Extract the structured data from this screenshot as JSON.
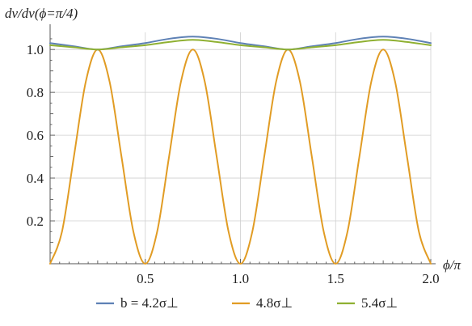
{
  "chart_data": {
    "type": "line",
    "ylabel": "dν/dν(ϕ=π/4)",
    "xlabel": "ϕ/π",
    "xlim": [
      0,
      2
    ],
    "ylim": [
      0,
      1.08
    ],
    "grid": true,
    "legend_position": "bottom",
    "x_ticks": [
      {
        "value": 0.5,
        "label": "0.5"
      },
      {
        "value": 1.0,
        "label": "1.0"
      },
      {
        "value": 1.5,
        "label": "1.5"
      },
      {
        "value": 2.0,
        "label": "2.0"
      }
    ],
    "y_ticks": [
      {
        "value": 0.2,
        "label": "0.2"
      },
      {
        "value": 0.4,
        "label": "0.4"
      },
      {
        "value": 0.6,
        "label": "0.6"
      },
      {
        "value": 0.8,
        "label": "0.8"
      },
      {
        "value": 1.0,
        "label": "1.0"
      }
    ],
    "series": [
      {
        "name": "b = 4.2σ⊥",
        "color": "#5E81B5",
        "x": [
          0,
          0.125,
          0.25,
          0.375,
          0.5,
          0.625,
          0.75,
          0.875,
          1.0,
          1.125,
          1.25,
          1.375,
          1.5,
          1.625,
          1.75,
          1.875,
          2.0
        ],
        "y": [
          1.03,
          1.015,
          1.0,
          1.015,
          1.03,
          1.05,
          1.06,
          1.05,
          1.03,
          1.015,
          1.0,
          1.015,
          1.03,
          1.05,
          1.06,
          1.05,
          1.03
        ]
      },
      {
        "name": "4.8σ⊥",
        "color": "#E19C24",
        "x": [
          0,
          0.0625,
          0.125,
          0.1875,
          0.25,
          0.3125,
          0.375,
          0.4375,
          0.5,
          0.5625,
          0.625,
          0.6875,
          0.75,
          0.8125,
          0.875,
          0.9375,
          1.0,
          1.0625,
          1.125,
          1.1875,
          1.25,
          1.3125,
          1.375,
          1.4375,
          1.5,
          1.5625,
          1.625,
          1.6875,
          1.75,
          1.8125,
          1.875,
          1.9375,
          2.0
        ],
        "y": [
          0,
          0.15,
          0.5,
          0.85,
          1.0,
          0.85,
          0.5,
          0.15,
          0,
          0.15,
          0.5,
          0.85,
          1.0,
          0.85,
          0.5,
          0.15,
          0,
          0.15,
          0.5,
          0.85,
          1.0,
          0.85,
          0.5,
          0.15,
          0,
          0.15,
          0.5,
          0.85,
          1.0,
          0.85,
          0.5,
          0.15,
          0
        ]
      },
      {
        "name": "5.4σ⊥",
        "color": "#8FB032",
        "x": [
          0,
          0.125,
          0.25,
          0.375,
          0.5,
          0.625,
          0.75,
          0.875,
          1.0,
          1.125,
          1.25,
          1.375,
          1.5,
          1.625,
          1.75,
          1.875,
          2.0
        ],
        "y": [
          1.02,
          1.01,
          1.0,
          1.01,
          1.02,
          1.035,
          1.045,
          1.035,
          1.02,
          1.01,
          1.0,
          1.01,
          1.02,
          1.035,
          1.045,
          1.035,
          1.02
        ]
      }
    ],
    "legend": [
      {
        "label": "b = 4.2σ⊥",
        "color": "#5E81B5"
      },
      {
        "label": "4.8σ⊥",
        "color": "#E19C24"
      },
      {
        "label": "5.4σ⊥",
        "color": "#8FB032"
      }
    ]
  }
}
